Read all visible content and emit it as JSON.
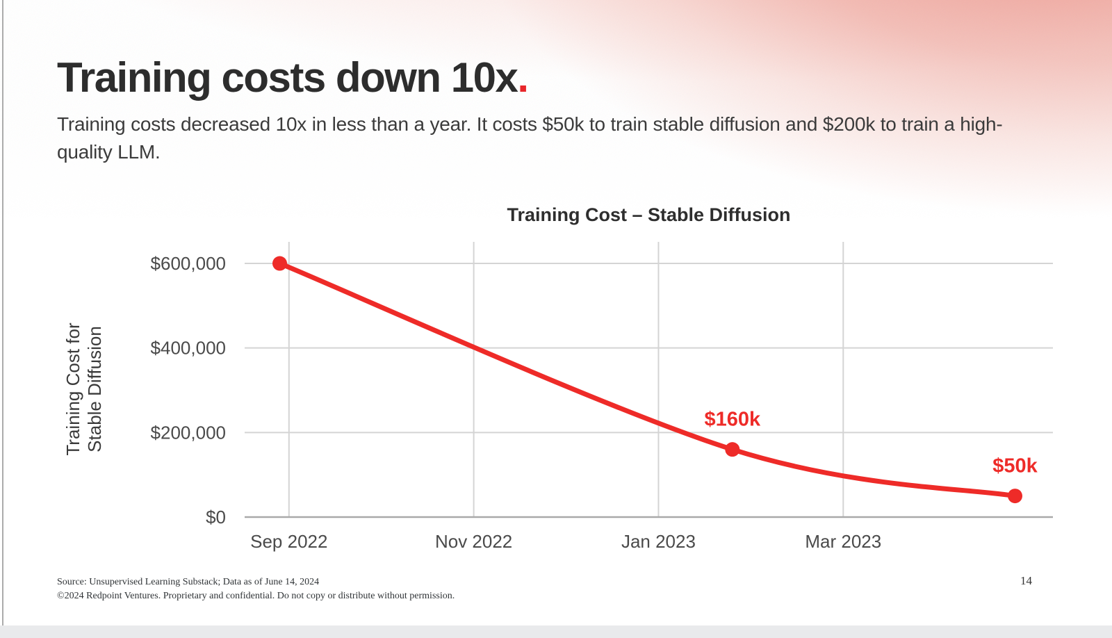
{
  "header": {
    "title": "Training costs down 10x",
    "title_period": ".",
    "subtitle": "Training costs decreased 10x in less than a year. It costs $50k to train stable diffusion and $200k to train a high-quality LLM."
  },
  "chart_data": {
    "type": "line",
    "title": "Training Cost – Stable Diffusion",
    "ylabel_lines": [
      "Training Cost for",
      "Stable Diffusion"
    ],
    "xlabel": "",
    "grid": true,
    "legend": "none",
    "line_color": "#ee2b28",
    "grid_color": "#d4d4d4",
    "axis_color": "#a9a9a9",
    "tick_color": "#4a4a4a",
    "series": [
      {
        "name": "Training cost for Stable Diffusion",
        "points": [
          {
            "date": "Sep 2022",
            "month": -0.1,
            "value": 600000,
            "label": ""
          },
          {
            "date": "Jan 2023",
            "month": 4.8,
            "value": 160000,
            "label": "$160k"
          },
          {
            "date": "Apr 2023",
            "month": 7.86,
            "value": 50000,
            "label": "$50k"
          }
        ]
      }
    ],
    "x_ticks": [
      {
        "label": "Sep 2022",
        "month": 0
      },
      {
        "label": "Nov 2022",
        "month": 2
      },
      {
        "label": "Jan 2023",
        "month": 4
      },
      {
        "label": "Mar 2023",
        "month": 6
      }
    ],
    "y_ticks": [
      {
        "label": "$0",
        "value": 0
      },
      {
        "label": "$200,000",
        "value": 200000
      },
      {
        "label": "$400,000",
        "value": 400000
      },
      {
        "label": "$600,000",
        "value": 600000
      }
    ],
    "x_range_months": [
      -0.48,
      8.27
    ],
    "y_range": [
      0,
      651000
    ]
  },
  "footer": {
    "source": "Source: Unsupervised Learning Substack; Data as of June 14, 2024",
    "copyright": "©2024 Redpoint Ventures. Proprietary and confidential. Do not copy or distribute without permission.",
    "page_number": "14"
  }
}
